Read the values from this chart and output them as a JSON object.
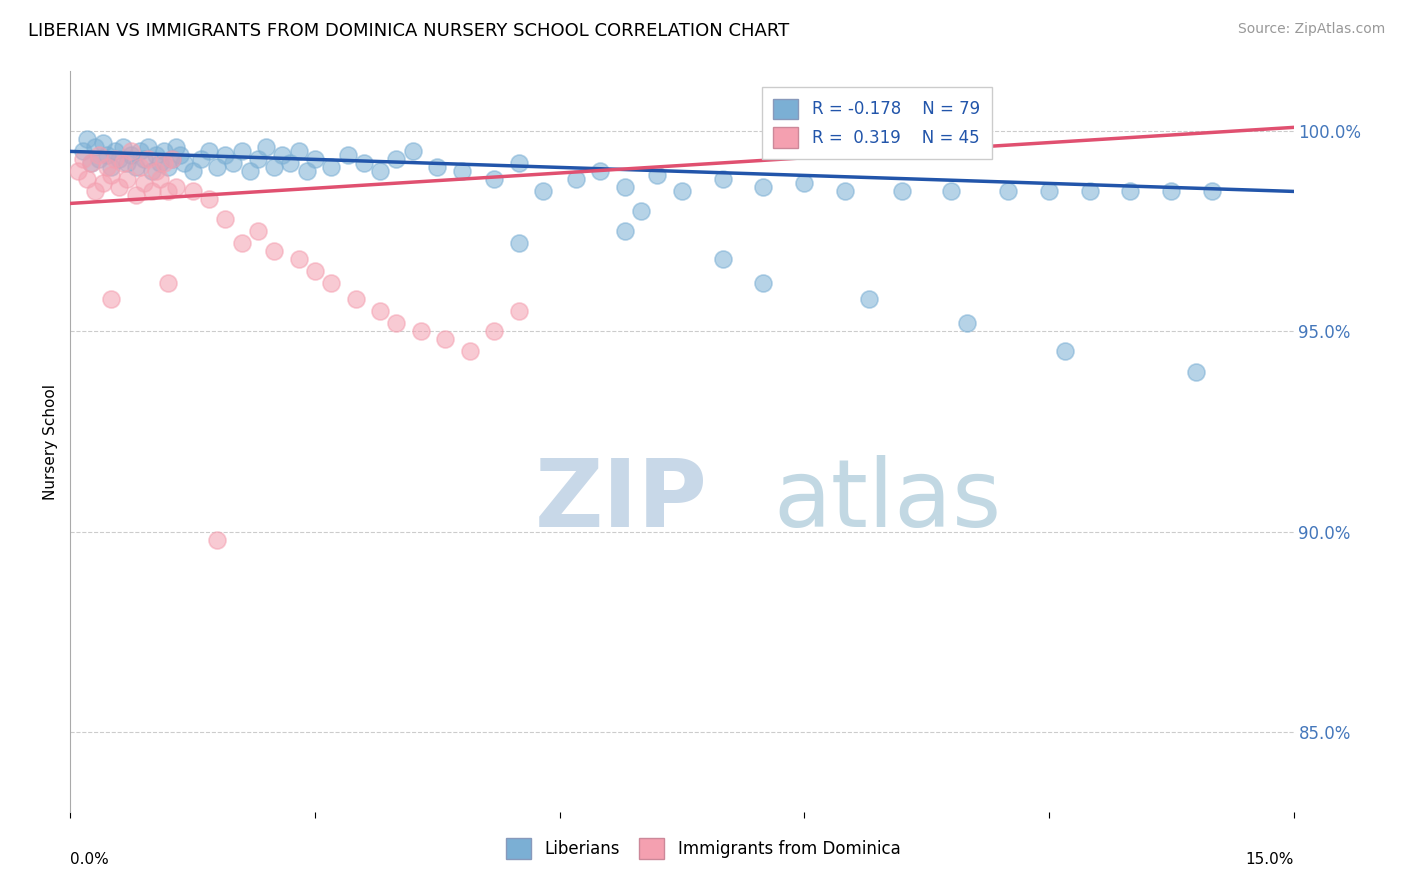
{
  "title": "LIBERIAN VS IMMIGRANTS FROM DOMINICA NURSERY SCHOOL CORRELATION CHART",
  "source": "Source: ZipAtlas.com",
  "ylabel": "Nursery School",
  "xlim": [
    0.0,
    15.0
  ],
  "ylim": [
    83.0,
    101.5
  ],
  "y_ticks": [
    85.0,
    90.0,
    95.0,
    100.0
  ],
  "legend_R1": "-0.178",
  "legend_N1": "79",
  "legend_R2": "0.319",
  "legend_N2": "45",
  "color_blue": "#7BAFD4",
  "color_pink": "#F4A0B0",
  "color_blue_line": "#2255AA",
  "color_pink_line": "#E05070",
  "blue_scatter_x": [
    0.15,
    0.2,
    0.25,
    0.3,
    0.35,
    0.4,
    0.45,
    0.5,
    0.55,
    0.6,
    0.65,
    0.7,
    0.75,
    0.8,
    0.85,
    0.9,
    0.95,
    1.0,
    1.05,
    1.1,
    1.15,
    1.2,
    1.25,
    1.3,
    1.35,
    1.4,
    1.5,
    1.6,
    1.7,
    1.8,
    1.9,
    2.0,
    2.1,
    2.2,
    2.3,
    2.4,
    2.5,
    2.6,
    2.7,
    2.8,
    2.9,
    3.0,
    3.2,
    3.4,
    3.6,
    3.8,
    4.0,
    4.2,
    4.5,
    4.8,
    5.2,
    5.5,
    5.8,
    6.2,
    6.5,
    6.8,
    7.2,
    7.5,
    8.0,
    8.5,
    9.0,
    9.5,
    10.2,
    10.8,
    11.5,
    12.0,
    12.5,
    13.0,
    13.5,
    14.0,
    5.5,
    6.8,
    8.5,
    9.8,
    11.0,
    12.2,
    13.8,
    7.0,
    8.0
  ],
  "blue_scatter_y": [
    99.5,
    99.8,
    99.2,
    99.6,
    99.3,
    99.7,
    99.4,
    99.1,
    99.5,
    99.3,
    99.6,
    99.2,
    99.4,
    99.1,
    99.5,
    99.3,
    99.6,
    99.0,
    99.4,
    99.2,
    99.5,
    99.1,
    99.3,
    99.6,
    99.4,
    99.2,
    99.0,
    99.3,
    99.5,
    99.1,
    99.4,
    99.2,
    99.5,
    99.0,
    99.3,
    99.6,
    99.1,
    99.4,
    99.2,
    99.5,
    99.0,
    99.3,
    99.1,
    99.4,
    99.2,
    99.0,
    99.3,
    99.5,
    99.1,
    99.0,
    98.8,
    99.2,
    98.5,
    98.8,
    99.0,
    98.6,
    98.9,
    98.5,
    98.8,
    98.6,
    98.7,
    98.5,
    98.5,
    98.5,
    98.5,
    98.5,
    98.5,
    98.5,
    98.5,
    98.5,
    97.2,
    97.5,
    96.2,
    95.8,
    95.2,
    94.5,
    94.0,
    98.0,
    96.8
  ],
  "pink_scatter_x": [
    0.1,
    0.15,
    0.2,
    0.25,
    0.3,
    0.35,
    0.4,
    0.45,
    0.5,
    0.55,
    0.6,
    0.65,
    0.7,
    0.75,
    0.8,
    0.85,
    0.9,
    0.95,
    1.0,
    1.05,
    1.1,
    1.15,
    1.2,
    1.25,
    1.3,
    1.5,
    1.7,
    1.9,
    2.1,
    2.3,
    2.5,
    2.8,
    3.0,
    3.2,
    3.5,
    3.8,
    4.0,
    4.3,
    4.6,
    4.9,
    5.2,
    5.5,
    0.5,
    1.2,
    1.8
  ],
  "pink_scatter_y": [
    99.0,
    99.3,
    98.8,
    99.2,
    98.5,
    99.4,
    98.7,
    99.1,
    98.9,
    99.3,
    98.6,
    99.2,
    98.8,
    99.5,
    98.4,
    99.1,
    98.7,
    99.3,
    98.5,
    99.0,
    98.8,
    99.2,
    98.5,
    99.3,
    98.6,
    98.5,
    98.3,
    97.8,
    97.2,
    97.5,
    97.0,
    96.8,
    96.5,
    96.2,
    95.8,
    95.5,
    95.2,
    95.0,
    94.8,
    94.5,
    95.0,
    95.5,
    95.8,
    96.2,
    89.8
  ]
}
